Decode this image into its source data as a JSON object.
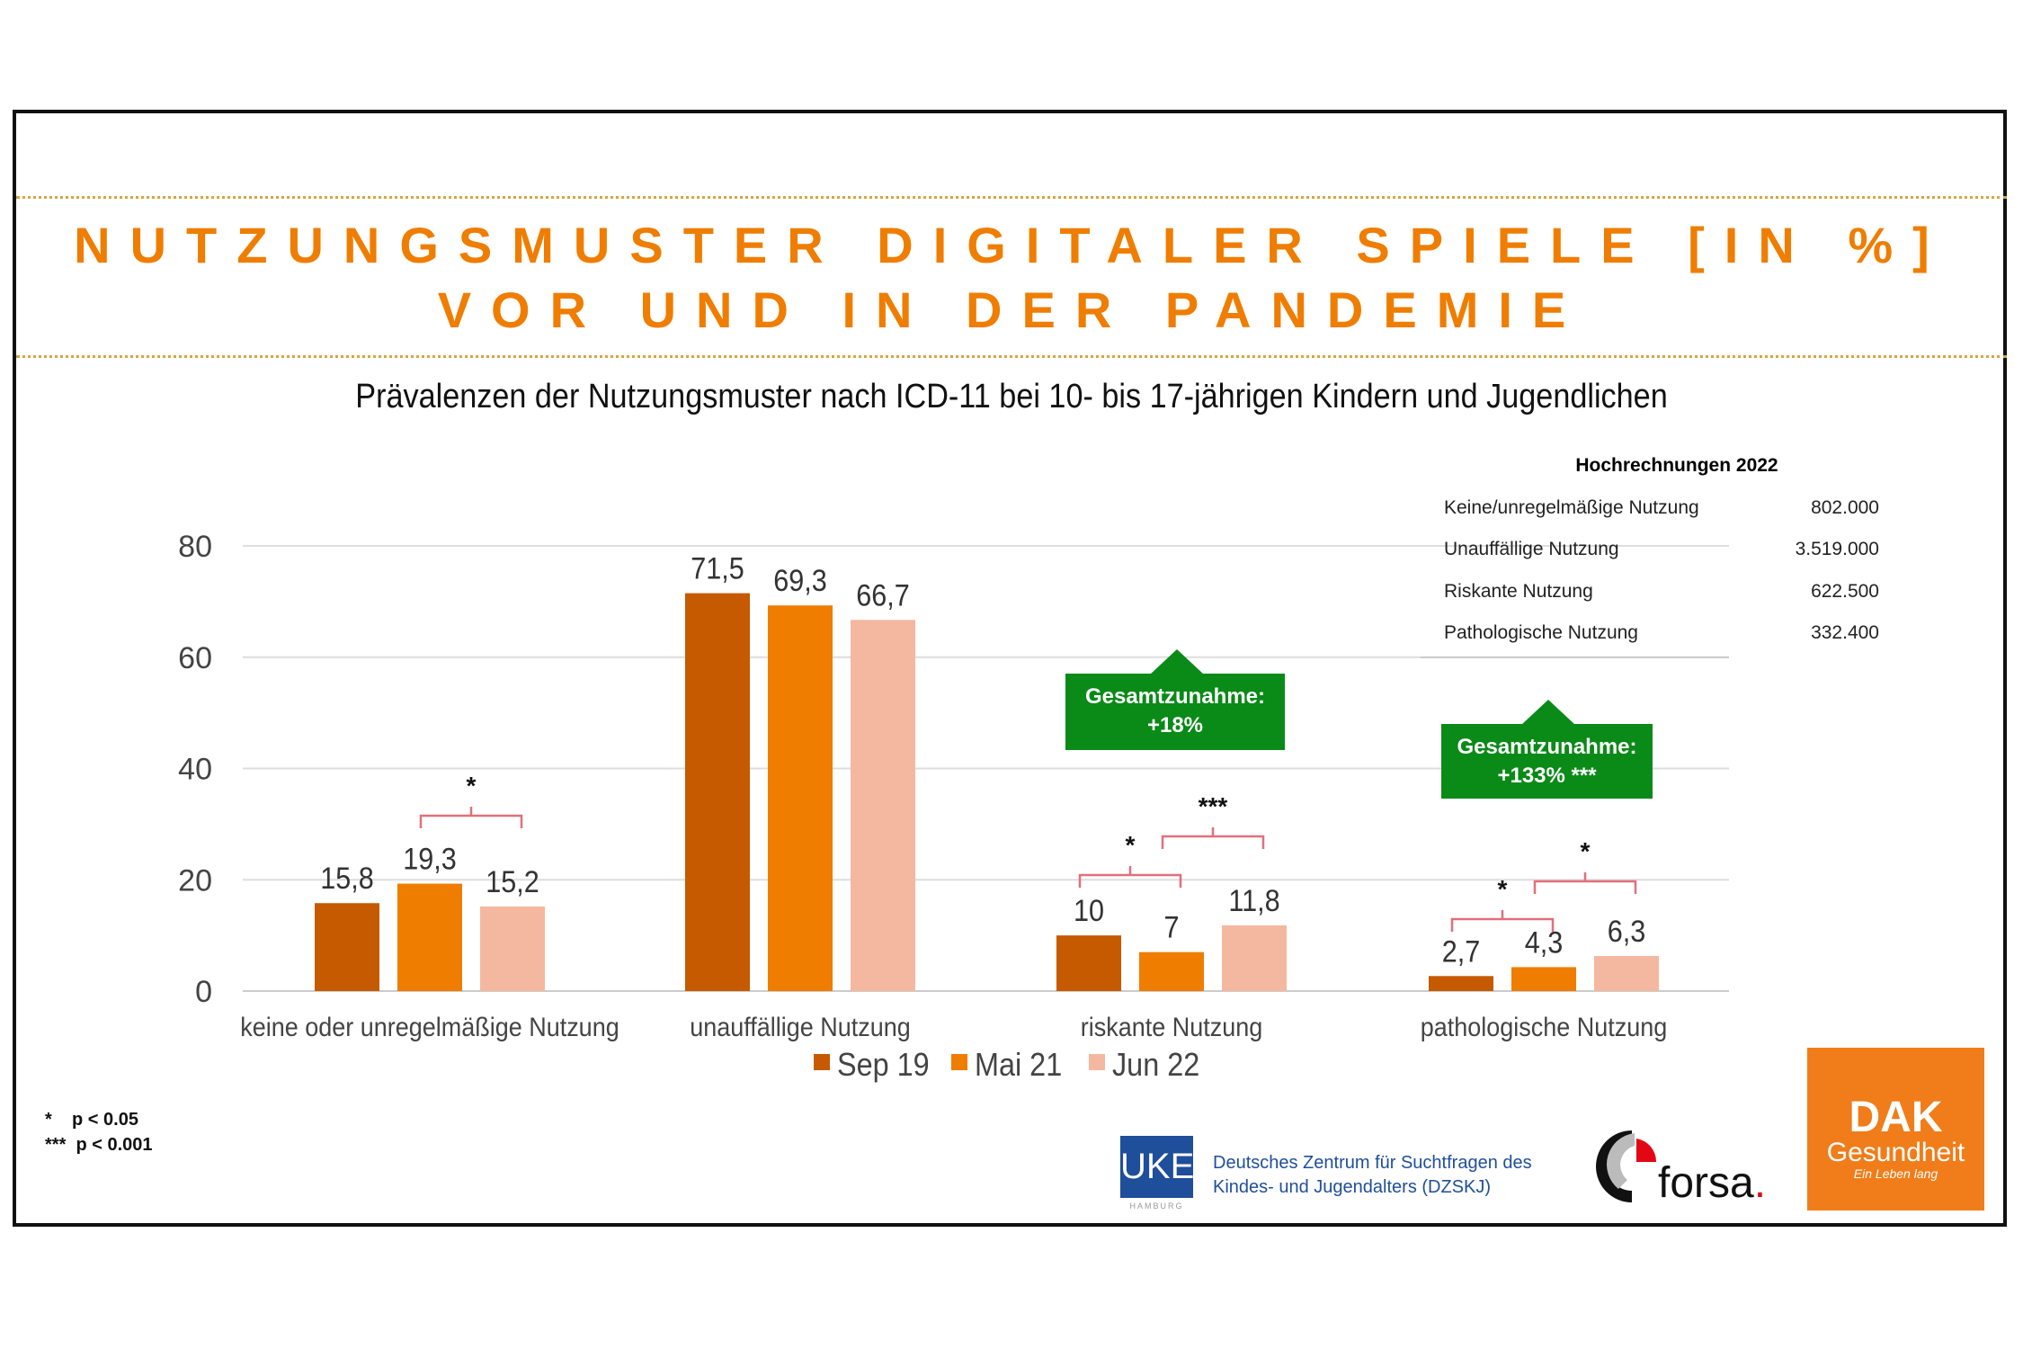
{
  "title_line1": "NUTZUNGSMUSTER DIGITALER SPIELE [IN %]",
  "title_line2": "VOR UND IN DER PANDEMIE",
  "subtitle": "Prävalenzen der Nutzungsmuster nach ICD-11 bei 10- bis 17-jährigen Kindern und Jugendlichen",
  "chart_data": {
    "type": "bar",
    "categories": [
      "keine oder  unregelmäßige Nutzung",
      "unauffällige Nutzung",
      "riskante Nutzung",
      "pathologische Nutzung"
    ],
    "series": [
      {
        "name": "Sep 19",
        "color": "#c55a00",
        "values": [
          15.8,
          71.5,
          10,
          2.7
        ],
        "labels": [
          "15,8",
          "71,5",
          "10",
          "2,7"
        ]
      },
      {
        "name": "Mai 21",
        "color": "#ef7d00",
        "values": [
          19.3,
          69.3,
          7,
          4.3
        ],
        "labels": [
          "19,3",
          "69,3",
          "7",
          "4,3"
        ]
      },
      {
        "name": "Jun 22",
        "color": "#f4b8a0",
        "values": [
          15.2,
          66.7,
          11.8,
          6.3
        ],
        "labels": [
          "15,2",
          "66,7",
          "11,8",
          "6,3"
        ]
      }
    ],
    "ylim": [
      0,
      80
    ],
    "yticks": [
      "0",
      "20",
      "40",
      "60",
      "80"
    ],
    "grid": true,
    "legend": "bottom",
    "significance": [
      {
        "category": 0,
        "from": "Mai 21",
        "to": "Jun 22",
        "label": "*"
      },
      {
        "category": 2,
        "from": "Sep 19",
        "to": "Mai 21",
        "label": "*"
      },
      {
        "category": 2,
        "from": "Mai 21",
        "to": "Jun 22",
        "label": "***"
      },
      {
        "category": 3,
        "from": "Sep 19",
        "to": "Mai 21",
        "label": "*"
      },
      {
        "category": 3,
        "from": "Mai 21",
        "to": "Jun 22",
        "label": "*"
      }
    ],
    "callouts": [
      {
        "category": 2,
        "line1": "Gesamtzunahme:",
        "line2": "+18%"
      },
      {
        "category": 3,
        "line1": "Gesamtzunahme:",
        "line2": "+133% ***"
      }
    ]
  },
  "projection_table": {
    "title": "Hochrechnungen 2022",
    "rows": [
      {
        "label": "Keine/unregelmäßige Nutzung",
        "value": "802.000"
      },
      {
        "label": "Unauffällige Nutzung",
        "value": "3.519.000"
      },
      {
        "label": "Riskante Nutzung",
        "value": "622.500"
      },
      {
        "label": "Pathologische Nutzung",
        "value": "332.400"
      }
    ]
  },
  "footnotes": [
    "*    p < 0.05",
    "***  p < 0.001"
  ],
  "logos": {
    "uke": "UKE",
    "uke_sub": "HAMBURG",
    "dzskj_line1": "Deutsches Zentrum für Suchtfragen des",
    "dzskj_line2": "Kindes- und Jugendalters (DZSKJ)",
    "forsa": "forsa",
    "dak_line1": "DAK",
    "dak_line2": "Gesundheit",
    "dak_line3": "Ein Leben lang"
  }
}
